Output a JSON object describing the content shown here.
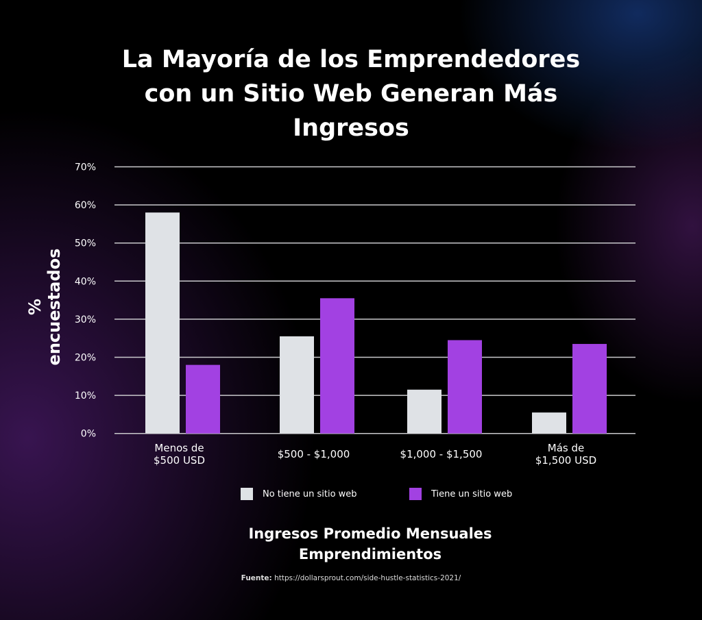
{
  "chart_data": {
    "type": "bar",
    "title": [
      "La Mayoría de los Emprendedores",
      "con un Sitio Web Generan Más",
      "Ingresos"
    ],
    "xlabel": [
      "Ingresos Promedio Mensuales",
      "Emprendimientos"
    ],
    "ylabel": "% encuestados",
    "ylim": [
      0,
      70
    ],
    "yticks": [
      "0%",
      "10%",
      "20%",
      "30%",
      "40%",
      "50%",
      "60%",
      "70%"
    ],
    "grid": true,
    "categories": [
      [
        "Menos de",
        "$500 USD"
      ],
      [
        "$500 - $1,000"
      ],
      [
        "$1,000 - $1,500"
      ],
      [
        "Más de",
        "$1,500 USD"
      ]
    ],
    "series": [
      {
        "name": "No tiene un sitio web",
        "color": "#dfe2e6",
        "values": [
          58,
          25.5,
          11.5,
          5.5
        ]
      },
      {
        "name": "Tiene un sitio web",
        "color": "#a241e2",
        "values": [
          18,
          35.5,
          24.5,
          23.5
        ]
      }
    ],
    "legend_position": "bottom",
    "source_label": "Fuente:",
    "source_url": "https://dollarsprout.com/side-hustle-statistics-2021/"
  }
}
